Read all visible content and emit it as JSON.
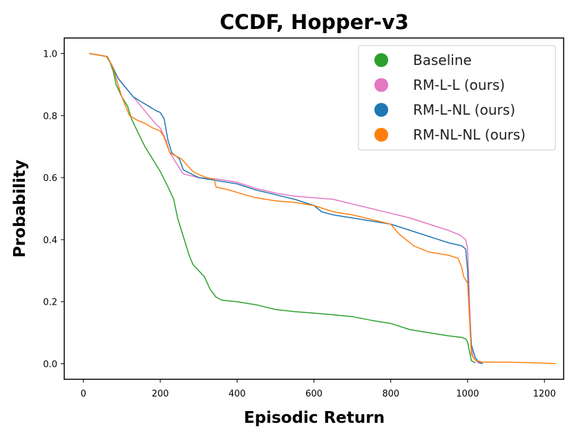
{
  "chart_data": {
    "type": "line",
    "title": "CCDF, Hopper-v3",
    "xlabel": "Episodic Return",
    "ylabel": "Probability",
    "xlim": [
      -50,
      1250
    ],
    "ylim": [
      -0.05,
      1.05
    ],
    "xticks": [
      0,
      200,
      400,
      600,
      800,
      1000,
      1200
    ],
    "yticks": [
      0.0,
      0.2,
      0.4,
      0.6,
      0.8,
      1.0
    ],
    "xtick_labels": [
      "0",
      "200",
      "400",
      "600",
      "800",
      "1000",
      "1200"
    ],
    "ytick_labels": [
      "0.0",
      "0.2",
      "0.4",
      "0.6",
      "0.8",
      "1.0"
    ],
    "grid": false,
    "legend_position": "top-right",
    "series": [
      {
        "name": "Baseline",
        "color": "#2ca02c",
        "points": [
          [
            15,
            1.0
          ],
          [
            40,
            0.995
          ],
          [
            60,
            0.99
          ],
          [
            70,
            0.97
          ],
          [
            78,
            0.94
          ],
          [
            85,
            0.9
          ],
          [
            100,
            0.86
          ],
          [
            115,
            0.83
          ],
          [
            125,
            0.79
          ],
          [
            140,
            0.75
          ],
          [
            160,
            0.7
          ],
          [
            180,
            0.66
          ],
          [
            200,
            0.62
          ],
          [
            220,
            0.57
          ],
          [
            235,
            0.53
          ],
          [
            245,
            0.47
          ],
          [
            255,
            0.43
          ],
          [
            265,
            0.39
          ],
          [
            275,
            0.35
          ],
          [
            285,
            0.32
          ],
          [
            300,
            0.3
          ],
          [
            315,
            0.28
          ],
          [
            330,
            0.24
          ],
          [
            345,
            0.215
          ],
          [
            360,
            0.205
          ],
          [
            400,
            0.2
          ],
          [
            450,
            0.19
          ],
          [
            500,
            0.175
          ],
          [
            550,
            0.168
          ],
          [
            600,
            0.163
          ],
          [
            650,
            0.158
          ],
          [
            700,
            0.152
          ],
          [
            750,
            0.14
          ],
          [
            800,
            0.13
          ],
          [
            850,
            0.11
          ],
          [
            900,
            0.1
          ],
          [
            950,
            0.09
          ],
          [
            985,
            0.085
          ],
          [
            995,
            0.08
          ],
          [
            1000,
            0.07
          ],
          [
            1005,
            0.04
          ],
          [
            1010,
            0.01
          ],
          [
            1020,
            0.003
          ]
        ]
      },
      {
        "name": "RM-L-L (ours)",
        "color": "#e377c2",
        "points": [
          [
            15,
            1.0
          ],
          [
            40,
            0.995
          ],
          [
            62,
            0.99
          ],
          [
            75,
            0.96
          ],
          [
            90,
            0.92
          ],
          [
            110,
            0.89
          ],
          [
            130,
            0.86
          ],
          [
            150,
            0.83
          ],
          [
            170,
            0.8
          ],
          [
            190,
            0.77
          ],
          [
            200,
            0.76
          ],
          [
            215,
            0.72
          ],
          [
            225,
            0.68
          ],
          [
            240,
            0.65
          ],
          [
            255,
            0.62
          ],
          [
            260,
            0.612
          ],
          [
            300,
            0.6
          ],
          [
            350,
            0.595
          ],
          [
            400,
            0.585
          ],
          [
            450,
            0.565
          ],
          [
            500,
            0.55
          ],
          [
            550,
            0.54
          ],
          [
            600,
            0.535
          ],
          [
            650,
            0.53
          ],
          [
            700,
            0.515
          ],
          [
            750,
            0.5
          ],
          [
            800,
            0.485
          ],
          [
            850,
            0.47
          ],
          [
            900,
            0.45
          ],
          [
            950,
            0.43
          ],
          [
            980,
            0.415
          ],
          [
            995,
            0.4
          ],
          [
            1000,
            0.37
          ],
          [
            1005,
            0.2
          ],
          [
            1010,
            0.05
          ],
          [
            1015,
            0.02
          ],
          [
            1025,
            0.005
          ],
          [
            1035,
            0.0
          ]
        ]
      },
      {
        "name": "RM-L-NL (ours)",
        "color": "#1f77b4",
        "points": [
          [
            15,
            1.0
          ],
          [
            40,
            0.995
          ],
          [
            62,
            0.99
          ],
          [
            75,
            0.96
          ],
          [
            90,
            0.92
          ],
          [
            110,
            0.89
          ],
          [
            130,
            0.86
          ],
          [
            150,
            0.845
          ],
          [
            170,
            0.83
          ],
          [
            190,
            0.815
          ],
          [
            200,
            0.81
          ],
          [
            210,
            0.79
          ],
          [
            220,
            0.72
          ],
          [
            230,
            0.68
          ],
          [
            250,
            0.66
          ],
          [
            260,
            0.625
          ],
          [
            300,
            0.6
          ],
          [
            350,
            0.59
          ],
          [
            400,
            0.58
          ],
          [
            450,
            0.56
          ],
          [
            500,
            0.545
          ],
          [
            550,
            0.53
          ],
          [
            600,
            0.51
          ],
          [
            620,
            0.49
          ],
          [
            650,
            0.48
          ],
          [
            700,
            0.47
          ],
          [
            750,
            0.46
          ],
          [
            800,
            0.45
          ],
          [
            850,
            0.43
          ],
          [
            900,
            0.41
          ],
          [
            950,
            0.39
          ],
          [
            985,
            0.38
          ],
          [
            995,
            0.37
          ],
          [
            1000,
            0.3
          ],
          [
            1005,
            0.15
          ],
          [
            1010,
            0.06
          ],
          [
            1020,
            0.02
          ],
          [
            1030,
            0.005
          ],
          [
            1040,
            0.0
          ]
        ]
      },
      {
        "name": "RM-NL-NL (ours)",
        "color": "#ff7f0e",
        "points": [
          [
            15,
            1.0
          ],
          [
            40,
            0.995
          ],
          [
            62,
            0.99
          ],
          [
            75,
            0.96
          ],
          [
            85,
            0.92
          ],
          [
            100,
            0.86
          ],
          [
            120,
            0.8
          ],
          [
            140,
            0.785
          ],
          [
            160,
            0.775
          ],
          [
            180,
            0.76
          ],
          [
            200,
            0.75
          ],
          [
            210,
            0.73
          ],
          [
            225,
            0.68
          ],
          [
            240,
            0.67
          ],
          [
            255,
            0.66
          ],
          [
            270,
            0.64
          ],
          [
            285,
            0.62
          ],
          [
            300,
            0.61
          ],
          [
            320,
            0.6
          ],
          [
            340,
            0.595
          ],
          [
            345,
            0.57
          ],
          [
            380,
            0.56
          ],
          [
            420,
            0.545
          ],
          [
            450,
            0.535
          ],
          [
            500,
            0.525
          ],
          [
            550,
            0.52
          ],
          [
            600,
            0.51
          ],
          [
            650,
            0.49
          ],
          [
            700,
            0.48
          ],
          [
            750,
            0.465
          ],
          [
            800,
            0.45
          ],
          [
            820,
            0.42
          ],
          [
            840,
            0.4
          ],
          [
            860,
            0.38
          ],
          [
            900,
            0.36
          ],
          [
            950,
            0.35
          ],
          [
            975,
            0.34
          ],
          [
            985,
            0.31
          ],
          [
            990,
            0.28
          ],
          [
            1000,
            0.26
          ],
          [
            1005,
            0.15
          ],
          [
            1010,
            0.03
          ],
          [
            1020,
            0.012
          ],
          [
            1040,
            0.005
          ],
          [
            1100,
            0.005
          ],
          [
            1150,
            0.004
          ],
          [
            1200,
            0.002
          ],
          [
            1230,
            0.0
          ]
        ]
      }
    ]
  }
}
